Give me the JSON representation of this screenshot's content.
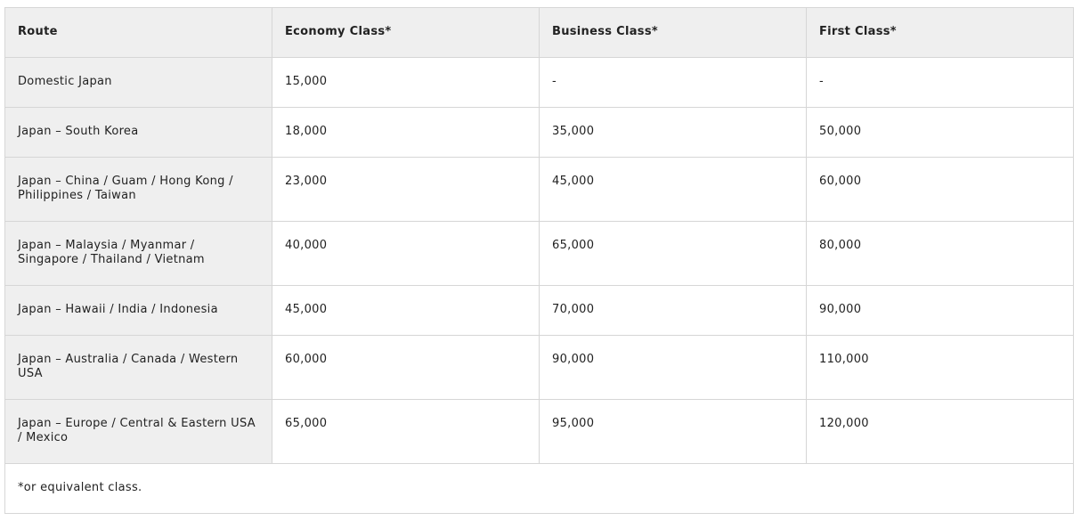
{
  "table": {
    "headers": [
      "Route",
      "Economy Class*",
      "Business Class*",
      "First Class*"
    ],
    "rows": [
      [
        "Domestic Japan",
        "15,000",
        "-",
        "-"
      ],
      [
        "Japan – South Korea",
        "18,000",
        "35,000",
        "50,000"
      ],
      [
        "Japan – China / Guam / Hong Kong / Philippines / Taiwan",
        "23,000",
        "45,000",
        "60,000"
      ],
      [
        "Japan – Malaysia / Myanmar / Singapore / Thailand / Vietnam",
        "40,000",
        "65,000",
        "80,000"
      ],
      [
        "Japan – Hawaii / India / Indonesia",
        "45,000",
        "70,000",
        "90,000"
      ],
      [
        "Japan – Australia / Canada / Western USA",
        "60,000",
        "90,000",
        "110,000"
      ],
      [
        "Japan – Europe / Central & Eastern USA / Mexico",
        "65,000",
        "95,000",
        "120,000"
      ]
    ],
    "footnote": "*or equivalent class."
  }
}
